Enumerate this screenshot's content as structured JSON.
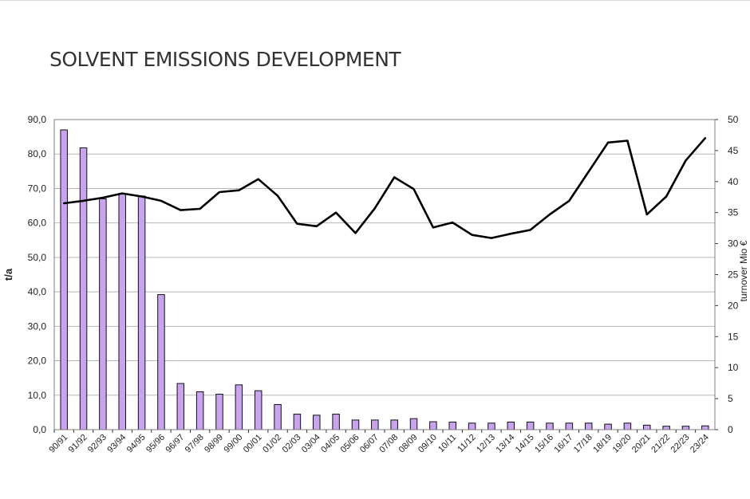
{
  "chart_data": {
    "type": "bar",
    "title": "SOLVENT EMISSIONS DEVELOPMENT",
    "ylabel": "t/a",
    "y2label": "turnover Mio €",
    "ylim": [
      0,
      90
    ],
    "y2lim": [
      0,
      50
    ],
    "yticks": [
      "0,0",
      "10,0",
      "20,0",
      "30,0",
      "40,0",
      "50,0",
      "60,0",
      "70,0",
      "80,0",
      "90,0"
    ],
    "y2ticks": [
      "0",
      "5",
      "10",
      "15",
      "20",
      "25",
      "30",
      "35",
      "40",
      "45",
      "50"
    ],
    "grid": true,
    "categories": [
      "90/91",
      "91/92",
      "92/93",
      "93/94",
      "94/95",
      "95/96",
      "96/97",
      "97/98",
      "98/99",
      "99/00",
      "00/01",
      "01/02",
      "02/03",
      "03/04",
      "04/05",
      "05/06",
      "06/07",
      "07/08",
      "08/09",
      "09/10",
      "10/11",
      "11/12",
      "12/13",
      "13/14",
      "14/15",
      "15/16",
      "16/17",
      "17/18",
      "18/19",
      "19/20",
      "20/21",
      "21/22",
      "22/23",
      "23/24"
    ],
    "series": [
      {
        "type": "bar",
        "axis": "left",
        "color": "#c9a3f0",
        "values": [
          87.0,
          81.8,
          67.0,
          68.5,
          67.8,
          39.2,
          13.4,
          11.0,
          10.3,
          13.0,
          11.3,
          7.3,
          4.5,
          4.2,
          4.5,
          2.8,
          2.8,
          2.8,
          3.2,
          2.3,
          2.2,
          1.9,
          1.9,
          2.2,
          2.2,
          1.9,
          1.9,
          1.9,
          1.6,
          1.9,
          1.3,
          1.0,
          1.0,
          1.1
        ]
      },
      {
        "type": "line",
        "axis": "right",
        "color": "#000000",
        "values": [
          36.5,
          36.9,
          37.4,
          38.1,
          37.6,
          36.9,
          35.4,
          35.6,
          38.3,
          38.6,
          40.4,
          37.7,
          33.2,
          32.8,
          35.0,
          31.7,
          35.7,
          40.7,
          38.8,
          32.6,
          33.4,
          31.4,
          30.9,
          31.6,
          32.2,
          34.7,
          36.9,
          41.6,
          46.3,
          46.6,
          34.7,
          37.6,
          43.4,
          47.0
        ]
      }
    ]
  }
}
